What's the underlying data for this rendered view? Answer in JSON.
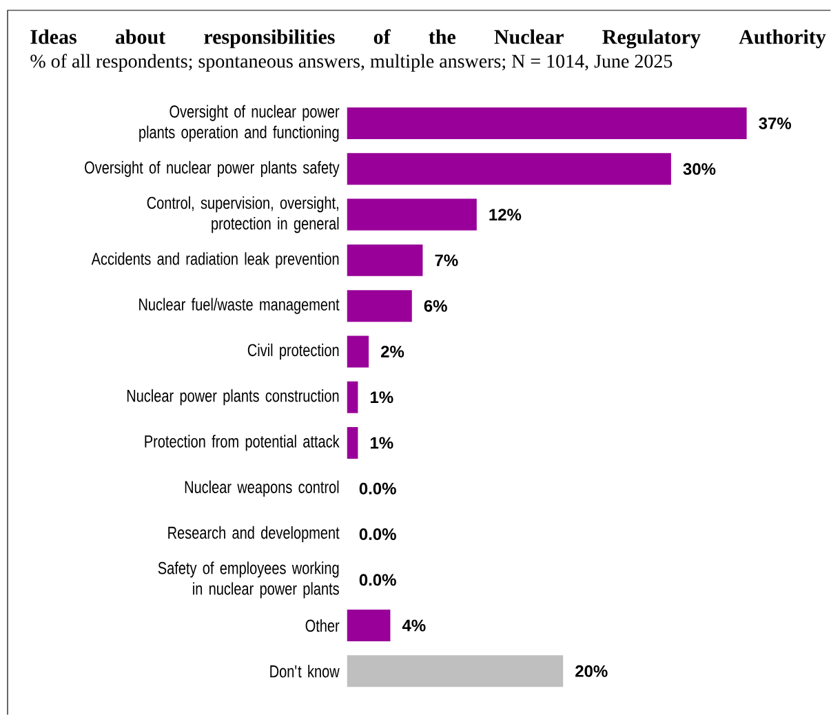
{
  "chart_data": {
    "type": "bar",
    "orientation": "horizontal",
    "title": "Ideas about responsibilities of the Nuclear Regulatory Authority",
    "subtitle": "% of all respondents; spontaneous answers, multiple answers; N = 1014, June 2025",
    "categories": [
      "Oversight of nuclear power plants operation and functioning",
      "Oversight of nuclear power plants safety",
      "Control, supervision, oversight, protection in general",
      "Accidents and radiation leak prevention",
      "Nuclear fuel/waste management",
      "Civil protection",
      "Nuclear power plants construction",
      "Protection from potential attack",
      "Nuclear weapons control",
      "Research and development",
      "Safety of employees working in nuclear power plants",
      "Other",
      "Don't know"
    ],
    "values": [
      37,
      30,
      12,
      7,
      6,
      2,
      1,
      1,
      0,
      0,
      0,
      4,
      20
    ],
    "value_labels": [
      "37%",
      "30%",
      "12%",
      "7%",
      "6%",
      "2%",
      "1%",
      "1%",
      "0.0%",
      "0.0%",
      "0.0%",
      "4%",
      "20%"
    ],
    "colors": [
      "#990099",
      "#990099",
      "#990099",
      "#990099",
      "#990099",
      "#990099",
      "#990099",
      "#990099",
      "#990099",
      "#990099",
      "#990099",
      "#990099",
      "#bfbfbf"
    ]
  }
}
